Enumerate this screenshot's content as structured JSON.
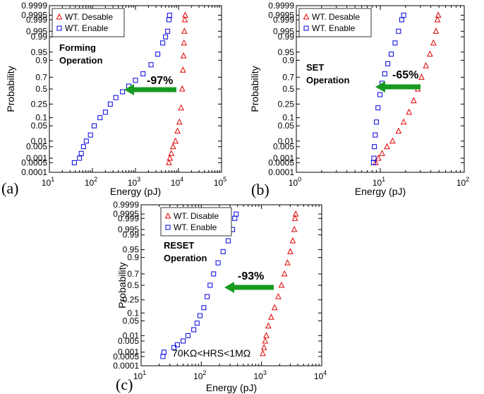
{
  "chart_data": [
    {
      "type": "scatter",
      "panel_label": "(a)",
      "xlabel": "Energy (pJ)",
      "ylabel": "Probability",
      "xscale": "log",
      "yscale": "normal-probability",
      "xlim": [
        10,
        100000
      ],
      "ylim": [
        0.0001,
        0.9999
      ],
      "x_ticks": [
        {
          "v": 10,
          "b": "10",
          "e": "1"
        },
        {
          "v": 100,
          "b": "10",
          "e": "2"
        },
        {
          "v": 1000,
          "b": "10",
          "e": "3"
        },
        {
          "v": 10000,
          "b": "10",
          "e": "4"
        },
        {
          "v": 100000,
          "b": "10",
          "e": "5"
        }
      ],
      "y_ticks": [
        "0.9999",
        "0.9995",
        "0.999",
        "0.995",
        "0.99",
        "0.95",
        "0.9",
        "0.7",
        "0.5",
        "0.25",
        "0.1",
        "0.05",
        "0.01",
        "0.005",
        "0.001",
        "0.0005",
        "0.0001"
      ],
      "legend_position": "top-left",
      "annotation": [
        "Forming",
        "Operation"
      ],
      "reduction_label": "-97%",
      "series": [
        {
          "name": "WT. Desable",
          "marker": "triangle",
          "color": "#e00000",
          "points": [
            [
              6000,
              0.0005
            ],
            [
              6300,
              0.001
            ],
            [
              6800,
              0.002
            ],
            [
              7500,
              0.005
            ],
            [
              8500,
              0.01
            ],
            [
              9500,
              0.03
            ],
            [
              10500,
              0.07
            ],
            [
              11500,
              0.2
            ],
            [
              12200,
              0.5
            ],
            [
              12700,
              0.8
            ],
            [
              13100,
              0.93
            ],
            [
              13400,
              0.98
            ],
            [
              13700,
              0.995
            ],
            [
              14000,
              0.999
            ],
            [
              14300,
              0.9995
            ]
          ]
        },
        {
          "name": "WT. Enable",
          "marker": "square",
          "color": "#0000e0",
          "points": [
            [
              38,
              0.0005
            ],
            [
              50,
              0.001
            ],
            [
              55,
              0.002
            ],
            [
              62,
              0.005
            ],
            [
              72,
              0.01
            ],
            [
              90,
              0.02
            ],
            [
              110,
              0.05
            ],
            [
              150,
              0.1
            ],
            [
              200,
              0.15
            ],
            [
              260,
              0.25
            ],
            [
              350,
              0.35
            ],
            [
              500,
              0.45
            ],
            [
              700,
              0.55
            ],
            [
              1000,
              0.65
            ],
            [
              1500,
              0.75
            ],
            [
              2300,
              0.86
            ],
            [
              3300,
              0.94
            ],
            [
              4300,
              0.98
            ],
            [
              5000,
              0.99
            ],
            [
              5600,
              0.995
            ],
            [
              6000,
              0.999
            ],
            [
              6200,
              0.9995
            ]
          ]
        }
      ]
    },
    {
      "type": "scatter",
      "panel_label": "(b)",
      "xlabel": "Energy (pJ)",
      "ylabel": "Probability",
      "xscale": "log",
      "yscale": "normal-probability",
      "xlim": [
        1,
        100
      ],
      "ylim": [
        0.0001,
        0.9999
      ],
      "x_ticks": [
        {
          "v": 1,
          "b": "10",
          "e": "0"
        },
        {
          "v": 10,
          "b": "10",
          "e": "1"
        },
        {
          "v": 100,
          "b": "10",
          "e": "2"
        }
      ],
      "y_ticks": [
        "0.9999",
        "0.9995",
        "0.999",
        "0.995",
        "0.99",
        "0.95",
        "0.9",
        "0.7",
        "0.5",
        "0.25",
        "0.1",
        "0.05",
        "0.01",
        "0.005",
        "0.001",
        "0.0005",
        "0.0001"
      ],
      "legend_position": "top-left",
      "annotation": [
        "SET",
        "Operation"
      ],
      "reduction_label": "-65%",
      "series": [
        {
          "name": "WT. Desable",
          "marker": "triangle",
          "color": "#e00000",
          "points": [
            [
              8.8,
              0.0005
            ],
            [
              9.5,
              0.001
            ],
            [
              10.5,
              0.002
            ],
            [
              12,
              0.005
            ],
            [
              14,
              0.01
            ],
            [
              16.5,
              0.03
            ],
            [
              19,
              0.07
            ],
            [
              22,
              0.15
            ],
            [
              25,
              0.3
            ],
            [
              28,
              0.5
            ],
            [
              31,
              0.7
            ],
            [
              35,
              0.85
            ],
            [
              39,
              0.94
            ],
            [
              43,
              0.98
            ],
            [
              46,
              0.995
            ],
            [
              48,
              0.999
            ],
            [
              49,
              0.9995
            ]
          ]
        },
        {
          "name": "WT. Enable",
          "marker": "square",
          "color": "#0000e0",
          "points": [
            [
              8.3,
              0.0005
            ],
            [
              8.4,
              0.001
            ],
            [
              8.5,
              0.005
            ],
            [
              8.7,
              0.02
            ],
            [
              9.0,
              0.07
            ],
            [
              9.4,
              0.2
            ],
            [
              9.9,
              0.4
            ],
            [
              10.5,
              0.6
            ],
            [
              11.3,
              0.75
            ],
            [
              12.3,
              0.87
            ],
            [
              13.5,
              0.94
            ],
            [
              15,
              0.98
            ],
            [
              16.5,
              0.995
            ],
            [
              18,
              0.999
            ],
            [
              19,
              0.9995
            ]
          ]
        }
      ]
    },
    {
      "type": "scatter",
      "panel_label": "(c)",
      "xlabel": "Energy (pJ)",
      "ylabel": "Probability",
      "xscale": "log",
      "yscale": "normal-probability",
      "xlim": [
        10,
        10000
      ],
      "ylim": [
        0.0001,
        0.9999
      ],
      "x_ticks": [
        {
          "v": 10,
          "b": "10",
          "e": "1"
        },
        {
          "v": 100,
          "b": "10",
          "e": "2"
        },
        {
          "v": 1000,
          "b": "10",
          "e": "3"
        },
        {
          "v": 10000,
          "b": "10",
          "e": "4"
        }
      ],
      "y_ticks": [
        "0.9999",
        "0.9995",
        "0.999",
        "0.995",
        "0.99",
        "0.95",
        "0.9",
        "0.7",
        "0.5",
        "0.25",
        "0.1",
        "0.05",
        "0.01",
        "0.005",
        "0.001",
        "0.0005",
        "0.0001"
      ],
      "legend_position": "top-left",
      "annotation": [
        "RESET",
        "Operation"
      ],
      "reduction_label": "-93%",
      "condition_label": "70KΩ<HRS<1MΩ",
      "series": [
        {
          "name": "WT. Disable",
          "marker": "triangle",
          "color": "#e00000",
          "points": [
            [
              1050,
              0.0008
            ],
            [
              1100,
              0.002
            ],
            [
              1150,
              0.005
            ],
            [
              1200,
              0.01
            ],
            [
              1300,
              0.03
            ],
            [
              1450,
              0.07
            ],
            [
              1650,
              0.15
            ],
            [
              1900,
              0.3
            ],
            [
              2150,
              0.5
            ],
            [
              2400,
              0.7
            ],
            [
              2700,
              0.85
            ],
            [
              3000,
              0.94
            ],
            [
              3300,
              0.98
            ],
            [
              3500,
              0.995
            ],
            [
              3600,
              0.999
            ],
            [
              3700,
              0.9995
            ]
          ]
        },
        {
          "name": "WT. Enable",
          "marker": "square",
          "color": "#0000e0",
          "points": [
            [
              23,
              0.0005
            ],
            [
              24,
              0.001
            ],
            [
              35,
              0.002
            ],
            [
              40,
              0.003
            ],
            [
              50,
              0.005
            ],
            [
              60,
              0.01
            ],
            [
              75,
              0.02
            ],
            [
              85,
              0.04
            ],
            [
              95,
              0.08
            ],
            [
              110,
              0.15
            ],
            [
              125,
              0.3
            ],
            [
              140,
              0.5
            ],
            [
              160,
              0.7
            ],
            [
              190,
              0.85
            ],
            [
              230,
              0.94
            ],
            [
              280,
              0.98
            ],
            [
              330,
              0.995
            ],
            [
              360,
              0.999
            ],
            [
              380,
              0.9995
            ]
          ]
        }
      ]
    }
  ]
}
